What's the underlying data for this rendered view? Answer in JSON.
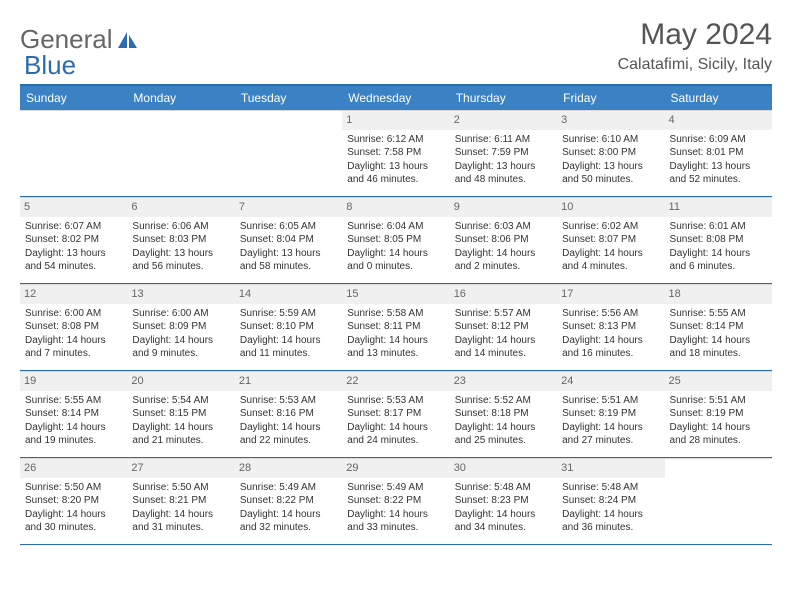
{
  "brand": {
    "part1": "General",
    "part2": "Blue"
  },
  "title": "May 2024",
  "location": "Calatafimi, Sicily, Italy",
  "colors": {
    "header_bg": "#3b82c4",
    "border": "#2b6cb0",
    "daynum_bg": "#f0f0f0",
    "text": "#333333"
  },
  "dayNames": [
    "Sunday",
    "Monday",
    "Tuesday",
    "Wednesday",
    "Thursday",
    "Friday",
    "Saturday"
  ],
  "weeks": [
    [
      null,
      null,
      null,
      {
        "n": "1",
        "sr": "Sunrise: 6:12 AM",
        "ss": "Sunset: 7:58 PM",
        "d1": "Daylight: 13 hours",
        "d2": "and 46 minutes."
      },
      {
        "n": "2",
        "sr": "Sunrise: 6:11 AM",
        "ss": "Sunset: 7:59 PM",
        "d1": "Daylight: 13 hours",
        "d2": "and 48 minutes."
      },
      {
        "n": "3",
        "sr": "Sunrise: 6:10 AM",
        "ss": "Sunset: 8:00 PM",
        "d1": "Daylight: 13 hours",
        "d2": "and 50 minutes."
      },
      {
        "n": "4",
        "sr": "Sunrise: 6:09 AM",
        "ss": "Sunset: 8:01 PM",
        "d1": "Daylight: 13 hours",
        "d2": "and 52 minutes."
      }
    ],
    [
      {
        "n": "5",
        "sr": "Sunrise: 6:07 AM",
        "ss": "Sunset: 8:02 PM",
        "d1": "Daylight: 13 hours",
        "d2": "and 54 minutes."
      },
      {
        "n": "6",
        "sr": "Sunrise: 6:06 AM",
        "ss": "Sunset: 8:03 PM",
        "d1": "Daylight: 13 hours",
        "d2": "and 56 minutes."
      },
      {
        "n": "7",
        "sr": "Sunrise: 6:05 AM",
        "ss": "Sunset: 8:04 PM",
        "d1": "Daylight: 13 hours",
        "d2": "and 58 minutes."
      },
      {
        "n": "8",
        "sr": "Sunrise: 6:04 AM",
        "ss": "Sunset: 8:05 PM",
        "d1": "Daylight: 14 hours",
        "d2": "and 0 minutes."
      },
      {
        "n": "9",
        "sr": "Sunrise: 6:03 AM",
        "ss": "Sunset: 8:06 PM",
        "d1": "Daylight: 14 hours",
        "d2": "and 2 minutes."
      },
      {
        "n": "10",
        "sr": "Sunrise: 6:02 AM",
        "ss": "Sunset: 8:07 PM",
        "d1": "Daylight: 14 hours",
        "d2": "and 4 minutes."
      },
      {
        "n": "11",
        "sr": "Sunrise: 6:01 AM",
        "ss": "Sunset: 8:08 PM",
        "d1": "Daylight: 14 hours",
        "d2": "and 6 minutes."
      }
    ],
    [
      {
        "n": "12",
        "sr": "Sunrise: 6:00 AM",
        "ss": "Sunset: 8:08 PM",
        "d1": "Daylight: 14 hours",
        "d2": "and 7 minutes."
      },
      {
        "n": "13",
        "sr": "Sunrise: 6:00 AM",
        "ss": "Sunset: 8:09 PM",
        "d1": "Daylight: 14 hours",
        "d2": "and 9 minutes."
      },
      {
        "n": "14",
        "sr": "Sunrise: 5:59 AM",
        "ss": "Sunset: 8:10 PM",
        "d1": "Daylight: 14 hours",
        "d2": "and 11 minutes."
      },
      {
        "n": "15",
        "sr": "Sunrise: 5:58 AM",
        "ss": "Sunset: 8:11 PM",
        "d1": "Daylight: 14 hours",
        "d2": "and 13 minutes."
      },
      {
        "n": "16",
        "sr": "Sunrise: 5:57 AM",
        "ss": "Sunset: 8:12 PM",
        "d1": "Daylight: 14 hours",
        "d2": "and 14 minutes."
      },
      {
        "n": "17",
        "sr": "Sunrise: 5:56 AM",
        "ss": "Sunset: 8:13 PM",
        "d1": "Daylight: 14 hours",
        "d2": "and 16 minutes."
      },
      {
        "n": "18",
        "sr": "Sunrise: 5:55 AM",
        "ss": "Sunset: 8:14 PM",
        "d1": "Daylight: 14 hours",
        "d2": "and 18 minutes."
      }
    ],
    [
      {
        "n": "19",
        "sr": "Sunrise: 5:55 AM",
        "ss": "Sunset: 8:14 PM",
        "d1": "Daylight: 14 hours",
        "d2": "and 19 minutes."
      },
      {
        "n": "20",
        "sr": "Sunrise: 5:54 AM",
        "ss": "Sunset: 8:15 PM",
        "d1": "Daylight: 14 hours",
        "d2": "and 21 minutes."
      },
      {
        "n": "21",
        "sr": "Sunrise: 5:53 AM",
        "ss": "Sunset: 8:16 PM",
        "d1": "Daylight: 14 hours",
        "d2": "and 22 minutes."
      },
      {
        "n": "22",
        "sr": "Sunrise: 5:53 AM",
        "ss": "Sunset: 8:17 PM",
        "d1": "Daylight: 14 hours",
        "d2": "and 24 minutes."
      },
      {
        "n": "23",
        "sr": "Sunrise: 5:52 AM",
        "ss": "Sunset: 8:18 PM",
        "d1": "Daylight: 14 hours",
        "d2": "and 25 minutes."
      },
      {
        "n": "24",
        "sr": "Sunrise: 5:51 AM",
        "ss": "Sunset: 8:19 PM",
        "d1": "Daylight: 14 hours",
        "d2": "and 27 minutes."
      },
      {
        "n": "25",
        "sr": "Sunrise: 5:51 AM",
        "ss": "Sunset: 8:19 PM",
        "d1": "Daylight: 14 hours",
        "d2": "and 28 minutes."
      }
    ],
    [
      {
        "n": "26",
        "sr": "Sunrise: 5:50 AM",
        "ss": "Sunset: 8:20 PM",
        "d1": "Daylight: 14 hours",
        "d2": "and 30 minutes."
      },
      {
        "n": "27",
        "sr": "Sunrise: 5:50 AM",
        "ss": "Sunset: 8:21 PM",
        "d1": "Daylight: 14 hours",
        "d2": "and 31 minutes."
      },
      {
        "n": "28",
        "sr": "Sunrise: 5:49 AM",
        "ss": "Sunset: 8:22 PM",
        "d1": "Daylight: 14 hours",
        "d2": "and 32 minutes."
      },
      {
        "n": "29",
        "sr": "Sunrise: 5:49 AM",
        "ss": "Sunset: 8:22 PM",
        "d1": "Daylight: 14 hours",
        "d2": "and 33 minutes."
      },
      {
        "n": "30",
        "sr": "Sunrise: 5:48 AM",
        "ss": "Sunset: 8:23 PM",
        "d1": "Daylight: 14 hours",
        "d2": "and 34 minutes."
      },
      {
        "n": "31",
        "sr": "Sunrise: 5:48 AM",
        "ss": "Sunset: 8:24 PM",
        "d1": "Daylight: 14 hours",
        "d2": "and 36 minutes."
      },
      null
    ]
  ]
}
